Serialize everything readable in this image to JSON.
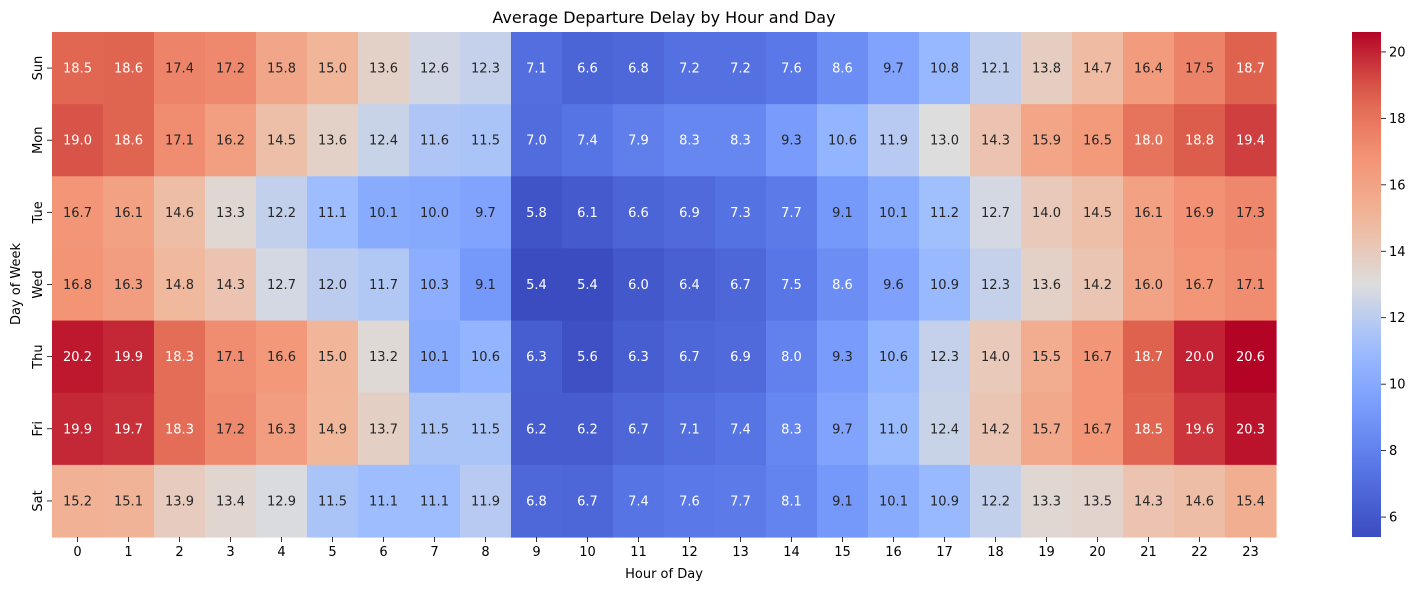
{
  "chart_data": {
    "type": "heatmap",
    "title": "Average Departure Delay by Hour and Day",
    "xlabel": "Hour of Day",
    "ylabel": "Day of Week",
    "x_categories": [
      "0",
      "1",
      "2",
      "3",
      "4",
      "5",
      "6",
      "7",
      "8",
      "9",
      "10",
      "11",
      "12",
      "13",
      "14",
      "15",
      "16",
      "17",
      "18",
      "19",
      "20",
      "21",
      "22",
      "23"
    ],
    "y_categories": [
      "Sun",
      "Mon",
      "Tue",
      "Wed",
      "Thu",
      "Fri",
      "Sat"
    ],
    "values": [
      [
        18.5,
        18.6,
        17.4,
        17.2,
        15.8,
        15.0,
        13.6,
        12.6,
        12.3,
        7.1,
        6.6,
        6.8,
        7.2,
        7.2,
        7.6,
        8.6,
        9.7,
        10.8,
        12.1,
        13.8,
        14.7,
        16.4,
        17.5,
        18.7
      ],
      [
        19.0,
        18.6,
        17.1,
        16.2,
        14.5,
        13.6,
        12.4,
        11.6,
        11.5,
        7.0,
        7.4,
        7.9,
        8.3,
        8.3,
        9.3,
        10.6,
        11.9,
        13.0,
        14.3,
        15.9,
        16.5,
        18.0,
        18.8,
        19.4
      ],
      [
        16.7,
        16.1,
        14.6,
        13.3,
        12.2,
        11.1,
        10.1,
        10.0,
        9.7,
        5.8,
        6.1,
        6.6,
        6.9,
        7.3,
        7.7,
        9.1,
        10.1,
        11.2,
        12.7,
        14.0,
        14.5,
        16.1,
        16.9,
        17.3
      ],
      [
        16.8,
        16.3,
        14.8,
        14.3,
        12.7,
        12.0,
        11.7,
        10.3,
        9.1,
        5.4,
        5.4,
        6.0,
        6.4,
        6.7,
        7.5,
        8.6,
        9.6,
        10.9,
        12.3,
        13.6,
        14.2,
        16.0,
        16.7,
        17.1
      ],
      [
        20.2,
        19.9,
        18.3,
        17.1,
        16.6,
        15.0,
        13.2,
        10.1,
        10.6,
        6.3,
        5.6,
        6.3,
        6.7,
        6.9,
        8.0,
        9.3,
        10.6,
        12.3,
        14.0,
        15.5,
        16.7,
        18.7,
        20.0,
        20.6
      ],
      [
        19.9,
        19.7,
        18.3,
        17.2,
        16.3,
        14.9,
        13.7,
        11.5,
        11.5,
        6.2,
        6.2,
        6.7,
        7.1,
        7.4,
        8.3,
        9.7,
        11.0,
        12.4,
        14.2,
        15.7,
        16.7,
        18.5,
        19.6,
        20.3
      ],
      [
        15.2,
        15.1,
        13.9,
        13.4,
        12.9,
        11.5,
        11.1,
        11.1,
        11.9,
        6.8,
        6.7,
        7.4,
        7.6,
        7.7,
        8.1,
        9.1,
        10.1,
        10.9,
        12.2,
        13.3,
        13.5,
        14.3,
        14.6,
        15.4
      ]
    ],
    "colormap": "coolwarm",
    "colorbar": {
      "vmin": 5.4,
      "vmax": 20.6,
      "ticks": [
        6,
        8,
        10,
        12,
        14,
        16,
        18,
        20
      ],
      "tick_labels": [
        "6",
        "8",
        "10",
        "12",
        "14",
        "16",
        "18",
        "20"
      ]
    },
    "cell_labels_format": "0.1f",
    "grid": false,
    "legend": "colorbar-right"
  }
}
